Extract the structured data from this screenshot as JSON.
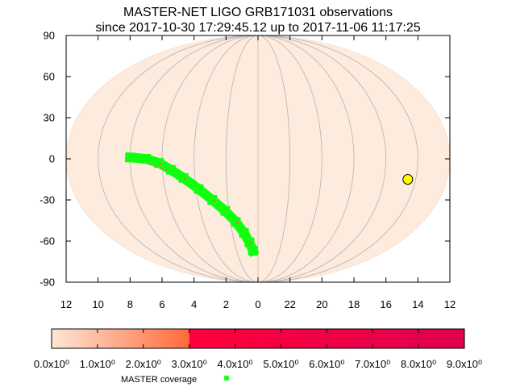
{
  "chart_data": {
    "type": "scatter",
    "title": "MASTER-NET LIGO GRB171031 observations",
    "subtitle": "since 2017-10-30 17:29:45.12 up to 2017-11-06 11:17:25",
    "projection": "mollweide",
    "xlabel": "",
    "ylabel": "",
    "x_ticks": [
      "12",
      "10",
      "8",
      "6",
      "4",
      "2",
      "0",
      "22",
      "20",
      "18",
      "16",
      "14",
      "12"
    ],
    "y_ticks": [
      "90",
      "60",
      "30",
      "0",
      "-30",
      "-60",
      "-90"
    ],
    "ylim": [
      -90,
      90
    ],
    "x_range_hours": [
      12,
      -12
    ],
    "grid": true,
    "colors": {
      "sky_fill": "#fdebdd",
      "grid": "#b8b8b8",
      "coverage": "#10ff10",
      "coverage_probability": "#ff5a5a",
      "sun_marker": "#ffff00"
    },
    "coverage_track": [
      {
        "ra_h": 8.0,
        "dec": 1
      },
      {
        "ra_h": 7.0,
        "dec": 0
      },
      {
        "ra_h": 6.2,
        "dec": -3
      },
      {
        "ra_h": 5.5,
        "dec": -8
      },
      {
        "ra_h": 4.8,
        "dec": -14
      },
      {
        "ra_h": 4.0,
        "dec": -22
      },
      {
        "ra_h": 3.3,
        "dec": -30
      },
      {
        "ra_h": 2.6,
        "dec": -38
      },
      {
        "ra_h": 2.0,
        "dec": -46
      },
      {
        "ra_h": 1.5,
        "dec": -54
      },
      {
        "ra_h": 1.1,
        "dec": -61
      },
      {
        "ra_h": 0.8,
        "dec": -67
      }
    ],
    "sun": {
      "ra_h": 14.3,
      "dec": -15
    },
    "colorbar": {
      "ticks": [
        "0.0x10⁰",
        "1.0x10⁰",
        "2.0x10⁰",
        "3.0x10⁰",
        "4.0x10⁰",
        "5.0x10⁰",
        "6.0x10⁰",
        "7.0x10⁰",
        "8.0x10⁰",
        "9.0x10⁰"
      ],
      "range": [
        0,
        9
      ],
      "gradient_max": 3,
      "low_color": "#fde6d6",
      "mid_color": "#ff6a3a",
      "high_start_color": "#ff003c",
      "high_end_color": "#e0004f"
    },
    "legend": [
      {
        "label": "MASTER coverage",
        "color": "#10ff10",
        "marker": "square"
      }
    ]
  }
}
